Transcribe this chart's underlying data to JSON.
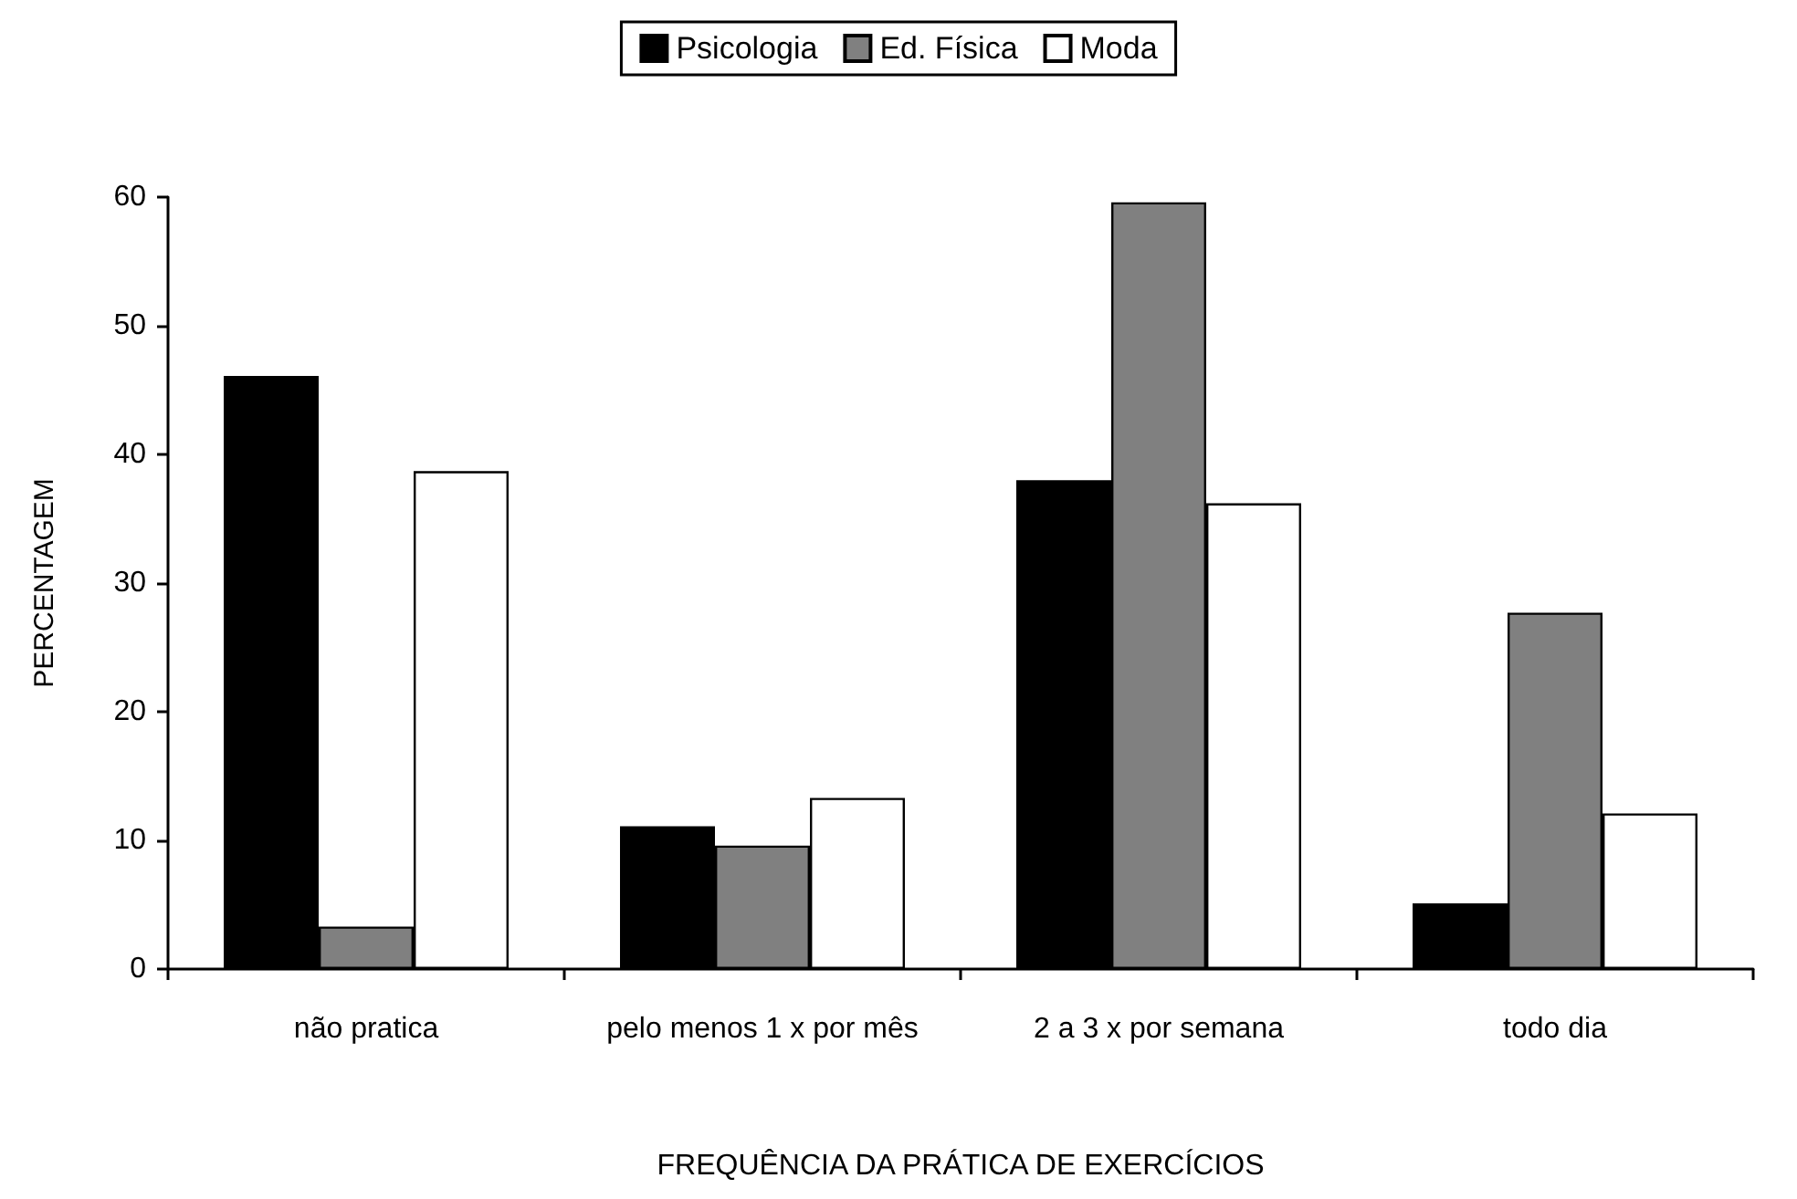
{
  "chart_data": {
    "type": "bar",
    "xlabel": "FREQUÊNCIA DA PRÁTICA DE EXERCÍCIOS",
    "ylabel": "PERCENTAGEM",
    "categories": [
      "não pratica",
      "pelo menos 1 x por mês",
      "2 a 3 x por semana",
      "todo dia"
    ],
    "series": [
      {
        "name": "Psicologia",
        "color": "#000000",
        "values": [
          46.1,
          11.1,
          38.0,
          5.1
        ]
      },
      {
        "name": "Ed. Física",
        "color": "#808080",
        "values": [
          3.3,
          9.6,
          59.6,
          27.7
        ]
      },
      {
        "name": "Moda",
        "color": "#ffffff",
        "values": [
          38.7,
          13.3,
          36.2,
          12.1
        ]
      }
    ],
    "ylim": [
      0,
      60
    ],
    "yticks": [
      0,
      10,
      20,
      30,
      40,
      50,
      60
    ],
    "grid": false,
    "legend": "top"
  }
}
